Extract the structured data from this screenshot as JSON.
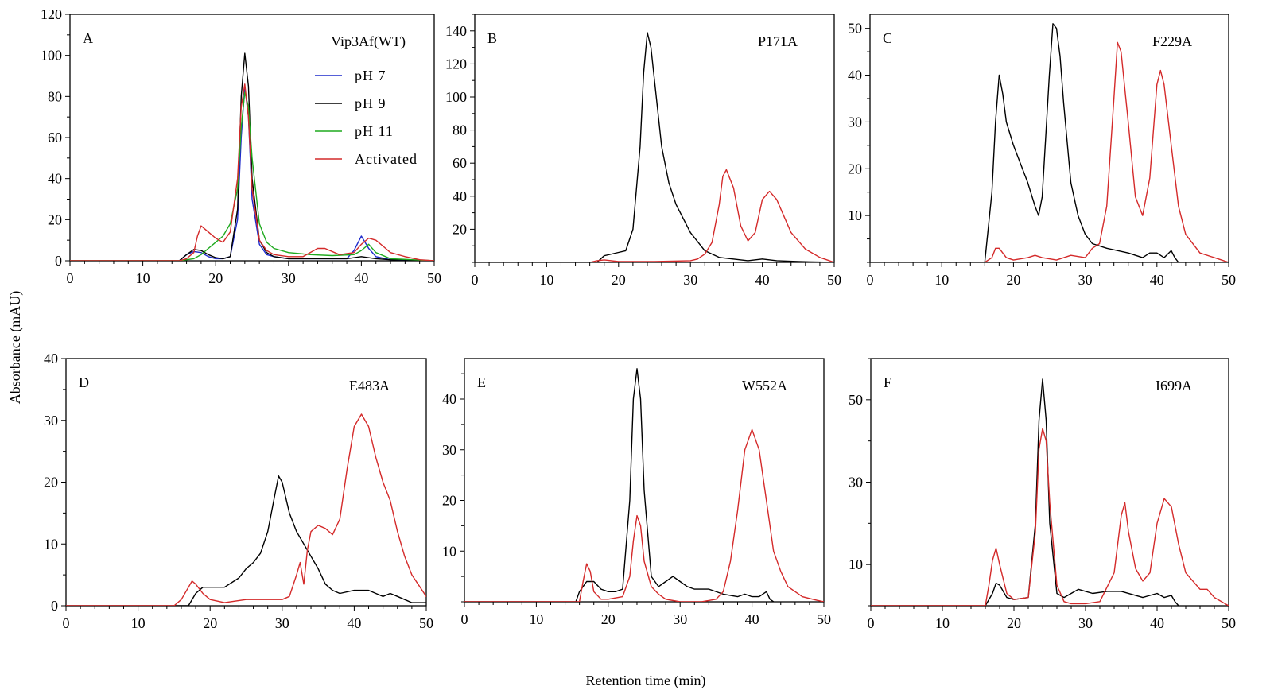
{
  "figure": {
    "ylabel": "Absorbance (mAU)",
    "xlabel": "Retention time (min)"
  },
  "colors": {
    "pH7": "#1f2bcc",
    "pH9": "#000000",
    "pH11": "#1faa1f",
    "activated": "#d42a2a"
  },
  "chart_data": [
    {
      "type": "line",
      "panel": "A",
      "title": "Vip3Af(WT)",
      "xlim": [
        0,
        50
      ],
      "ylim": [
        0,
        120
      ],
      "xticks": [
        0,
        10,
        20,
        30,
        40,
        50
      ],
      "yticks": [
        0,
        20,
        40,
        60,
        80,
        100,
        120
      ],
      "legend_position": "top-right",
      "series": [
        {
          "name": "pH 7",
          "color": "#1f2bcc",
          "x": [
            0,
            15,
            16,
            17,
            18,
            19,
            20,
            21,
            22,
            23,
            23.5,
            24,
            24.5,
            25,
            26,
            27,
            28,
            30,
            35,
            38,
            39,
            40,
            41,
            42,
            44,
            50
          ],
          "y": [
            0,
            0,
            3,
            4.5,
            4,
            2,
            1,
            1,
            2,
            20,
            60,
            85,
            70,
            30,
            8,
            3,
            2,
            1,
            1,
            1,
            5,
            12,
            6,
            2,
            0.5,
            0
          ]
        },
        {
          "name": "pH 9",
          "color": "#000000",
          "x": [
            0,
            15,
            16,
            17,
            18,
            19,
            20,
            21,
            22,
            23,
            23.5,
            24,
            24.5,
            25,
            26,
            27,
            28,
            30,
            35,
            38,
            40,
            42,
            44,
            50
          ],
          "y": [
            0,
            0,
            3,
            5.5,
            5,
            3,
            1.5,
            1,
            2,
            25,
            80,
            101,
            85,
            40,
            10,
            4,
            2,
            1,
            1,
            1,
            2,
            1,
            0.5,
            0
          ]
        },
        {
          "name": "pH 11",
          "color": "#1faa1f",
          "x": [
            0,
            15,
            17,
            18,
            19,
            20,
            21,
            22,
            23,
            23.5,
            24,
            24.5,
            25,
            26,
            27,
            28,
            30,
            33,
            36,
            39,
            40,
            41,
            42,
            44,
            50
          ],
          "y": [
            0,
            0,
            1,
            3,
            6,
            9,
            12,
            18,
            35,
            65,
            82,
            75,
            50,
            18,
            9,
            6,
            4,
            3,
            2.5,
            3,
            5,
            8,
            4,
            1,
            0
          ]
        },
        {
          "name": "Activated",
          "color": "#d42a2a",
          "x": [
            0,
            15,
            16,
            17,
            17.5,
            18,
            19,
            20,
            21,
            22,
            23,
            23.5,
            24,
            24.5,
            25,
            26,
            27,
            28,
            30,
            32,
            34,
            35,
            37,
            39,
            40,
            41,
            42,
            43,
            44,
            46,
            48,
            50
          ],
          "y": [
            0,
            0,
            1,
            4,
            12,
            17,
            14,
            11,
            9,
            14,
            40,
            75,
            86,
            70,
            35,
            10,
            5,
            3,
            2,
            2,
            6,
            6,
            3,
            4,
            8,
            11,
            10,
            7,
            4,
            2,
            0.5,
            0
          ]
        }
      ]
    },
    {
      "type": "line",
      "panel": "B",
      "title": "P171A",
      "xlim": [
        0,
        50
      ],
      "ylim": [
        0,
        150
      ],
      "xticks": [
        0,
        10,
        20,
        30,
        40,
        50
      ],
      "yticks": [
        20,
        40,
        60,
        80,
        100,
        120,
        140
      ],
      "series": [
        {
          "color": "#000000",
          "x": [
            0,
            17,
            18,
            20,
            21,
            22,
            23,
            23.5,
            24,
            24.5,
            25,
            26,
            27,
            28,
            30,
            32,
            34,
            38,
            40,
            42,
            45,
            50
          ],
          "y": [
            0,
            0,
            4,
            6,
            7,
            20,
            70,
            115,
            139,
            130,
            110,
            70,
            48,
            35,
            18,
            7,
            3,
            1,
            2,
            1,
            0.5,
            0
          ]
        },
        {
          "color": "#d42a2a",
          "x": [
            0,
            16,
            17,
            18,
            20,
            25,
            30,
            31,
            32,
            33,
            34,
            34.5,
            35,
            36,
            37,
            38,
            39,
            40,
            41,
            42,
            43,
            44,
            46,
            48,
            50
          ],
          "y": [
            0,
            0,
            1,
            1.5,
            0.5,
            0.5,
            1,
            2,
            5,
            12,
            35,
            52,
            56,
            45,
            22,
            13,
            18,
            38,
            43,
            38,
            28,
            18,
            8,
            3,
            0
          ]
        }
      ]
    },
    {
      "type": "line",
      "panel": "C",
      "title": "F229A",
      "xlim": [
        0,
        50
      ],
      "ylim": [
        0,
        53
      ],
      "xticks": [
        0,
        10,
        20,
        30,
        40,
        50
      ],
      "yticks": [
        10,
        20,
        30,
        40,
        50
      ],
      "series": [
        {
          "color": "#000000",
          "x": [
            0,
            16,
            17,
            17.5,
            18,
            18.5,
            19,
            20,
            22,
            23,
            23.5,
            24,
            25,
            25.5,
            26,
            26.5,
            27,
            28,
            29,
            30,
            31,
            33,
            36,
            38,
            39,
            40,
            41,
            42,
            42.5,
            43
          ],
          "y": [
            0,
            0,
            15,
            30,
            40,
            36,
            30,
            25,
            17,
            12,
            10,
            14,
            40,
            51,
            50,
            44,
            34,
            17,
            10,
            6,
            4,
            3,
            2,
            1,
            2,
            2,
            1,
            2.5,
            1,
            0
          ]
        },
        {
          "color": "#d42a2a",
          "x": [
            0,
            16,
            17,
            17.5,
            18,
            19,
            20,
            22,
            23,
            24,
            26,
            28,
            30,
            31,
            32,
            33,
            34,
            34.5,
            35,
            36,
            37,
            38,
            39,
            40,
            40.5,
            41,
            42,
            43,
            44,
            46,
            48,
            50
          ],
          "y": [
            0,
            0,
            1,
            3,
            3,
            1,
            0.5,
            1,
            1.5,
            1,
            0.5,
            1.5,
            1,
            3,
            4,
            12,
            35,
            47,
            45,
            30,
            14,
            10,
            18,
            38,
            41,
            38,
            25,
            12,
            6,
            2,
            1,
            0
          ]
        }
      ]
    },
    {
      "type": "line",
      "panel": "D",
      "title": "E483A",
      "xlim": [
        0,
        50
      ],
      "ylim": [
        0,
        40
      ],
      "xticks": [
        0,
        10,
        20,
        30,
        40,
        50
      ],
      "yticks": [
        0,
        10,
        20,
        30,
        40
      ],
      "series": [
        {
          "color": "#000000",
          "x": [
            0,
            17,
            18,
            19,
            20,
            22,
            24,
            25,
            26,
            27,
            28,
            29,
            29.5,
            30,
            31,
            32,
            33,
            34,
            35,
            36,
            37,
            38,
            40,
            42,
            43,
            44,
            45,
            46,
            47,
            48,
            50
          ],
          "y": [
            0,
            0,
            2,
            3,
            3,
            3,
            4.5,
            6,
            7,
            8.5,
            12,
            18,
            21,
            20,
            15,
            12,
            10,
            8,
            6,
            3.5,
            2.5,
            2,
            2.5,
            2.5,
            2,
            1.5,
            2,
            1.5,
            1,
            0.5,
            0.5
          ]
        },
        {
          "color": "#d42a2a",
          "x": [
            0,
            15,
            16,
            17,
            17.5,
            18,
            19,
            20,
            22,
            25,
            28,
            30,
            31,
            32,
            32.5,
            33,
            33.5,
            34,
            35,
            36,
            37,
            38,
            39,
            40,
            41,
            42,
            43,
            44,
            45,
            46,
            47,
            48,
            50
          ],
          "y": [
            0,
            0,
            1,
            3,
            4,
            3.5,
            2,
            1,
            0.5,
            1,
            1,
            1,
            1.5,
            5,
            7,
            3.5,
            9,
            12,
            13,
            12.5,
            11.5,
            14,
            22,
            29,
            31,
            29,
            24,
            20,
            17,
            12,
            8,
            5,
            1.5
          ]
        }
      ]
    },
    {
      "type": "line",
      "panel": "E",
      "title": "W552A",
      "xlim": [
        0,
        50
      ],
      "ylim": [
        0,
        48
      ],
      "xticks": [
        0,
        10,
        20,
        30,
        40,
        50
      ],
      "yticks": [
        10,
        20,
        30,
        40
      ],
      "series": [
        {
          "color": "#000000",
          "x": [
            0,
            15.5,
            16,
            17,
            18,
            19,
            20,
            21,
            22,
            23,
            23.5,
            24,
            24.5,
            25,
            26,
            27,
            28,
            29,
            30,
            31,
            32,
            34,
            36,
            38,
            39,
            40,
            41,
            42,
            42.5,
            43
          ],
          "y": [
            0,
            0,
            2,
            4,
            4,
            2.5,
            2,
            2,
            2.5,
            20,
            40,
            46,
            40,
            22,
            5,
            3,
            4,
            5,
            4,
            3,
            2.5,
            2.5,
            1.5,
            1,
            1.5,
            1,
            1,
            2,
            0.5,
            0
          ]
        },
        {
          "color": "#d42a2a",
          "x": [
            0,
            16,
            16.5,
            17,
            17.5,
            18,
            19,
            20,
            22,
            23,
            23.5,
            24,
            24.5,
            25,
            26,
            27,
            28,
            30,
            33,
            35,
            36,
            37,
            38,
            39,
            40,
            41,
            42,
            43,
            44,
            45,
            47,
            49,
            50
          ],
          "y": [
            0,
            0,
            4,
            7.5,
            6,
            2,
            0.5,
            0.5,
            1,
            5,
            12,
            17,
            15,
            8,
            3,
            1.5,
            0.5,
            0,
            0,
            0.5,
            2,
            8,
            18,
            30,
            34,
            30,
            20,
            10,
            6,
            3,
            1,
            0.3,
            0
          ]
        }
      ]
    },
    {
      "type": "line",
      "panel": "F",
      "title": "I699A",
      "xlim": [
        0,
        50
      ],
      "ylim": [
        0,
        60
      ],
      "xticks": [
        0,
        10,
        20,
        30,
        40,
        50
      ],
      "yticks": [
        10,
        30,
        50
      ],
      "series": [
        {
          "color": "#000000",
          "x": [
            0,
            16,
            17,
            17.5,
            18,
            19,
            20,
            22,
            23,
            23.5,
            24,
            24.5,
            25,
            26,
            27,
            28,
            29,
            30,
            31,
            33,
            35,
            38,
            39,
            40,
            41,
            42,
            42.5,
            43
          ],
          "y": [
            0,
            0,
            3,
            5.5,
            5,
            2,
            1.5,
            2,
            20,
            45,
            55,
            45,
            20,
            3,
            2,
            3,
            4,
            3.5,
            3,
            3.5,
            3.5,
            2,
            2.5,
            3,
            2,
            2.5,
            1,
            0
          ]
        },
        {
          "color": "#d42a2a",
          "x": [
            0,
            16,
            16.5,
            17,
            17.5,
            18,
            19,
            20,
            22,
            23,
            23.5,
            24,
            24.5,
            25,
            26,
            27,
            28,
            30,
            32,
            34,
            35,
            35.5,
            36,
            37,
            38,
            39,
            40,
            41,
            42,
            43,
            44,
            45,
            46,
            47,
            48,
            50
          ],
          "y": [
            0,
            0,
            5,
            11,
            14,
            10,
            3,
            1.5,
            2,
            18,
            38,
            43,
            40,
            25,
            5,
            1,
            0.5,
            0.5,
            1,
            8,
            22,
            25,
            18,
            9,
            6,
            8,
            20,
            26,
            24,
            15,
            8,
            6,
            4,
            4,
            2,
            0
          ]
        }
      ]
    }
  ]
}
